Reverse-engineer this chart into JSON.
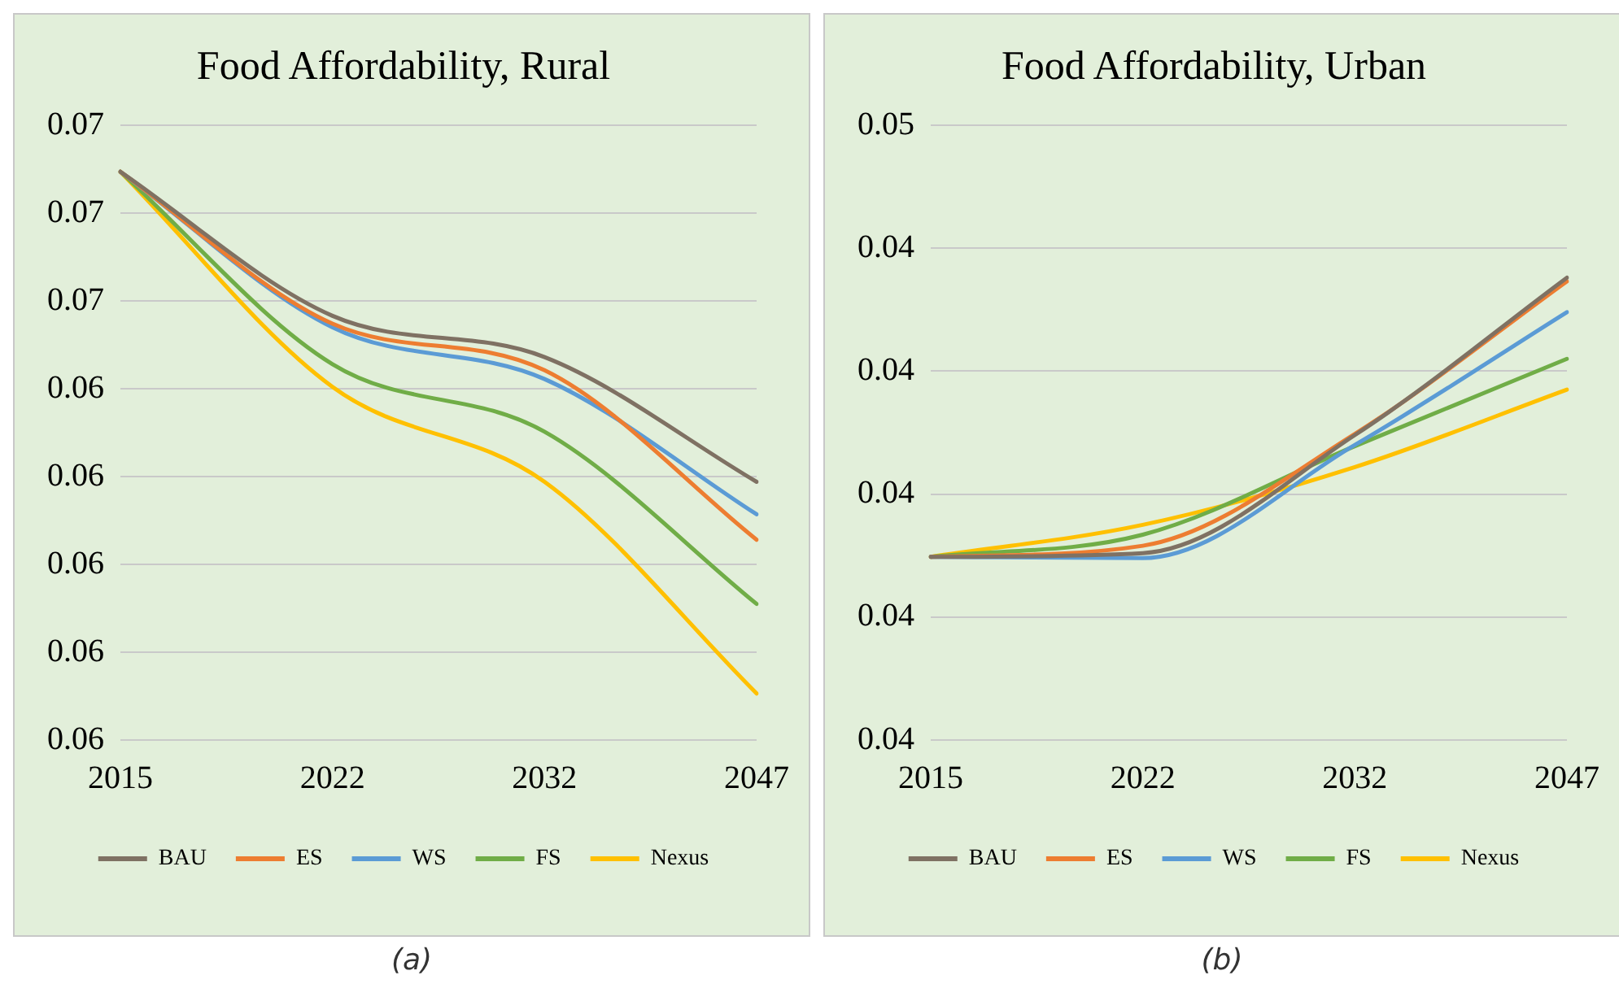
{
  "chart_data": [
    {
      "type": "line",
      "title": "Food Affordability, Rural",
      "categories": [
        "2015",
        "2022",
        "2032",
        "2047"
      ],
      "series": [
        {
          "name": "BAU",
          "color": "#7f7163",
          "values": [
            0.06697,
            0.06533,
            0.06486,
            0.06344
          ]
        },
        {
          "name": "ES",
          "color": "#ed7d31",
          "values": [
            0.06697,
            0.06524,
            0.06471,
            0.06278
          ]
        },
        {
          "name": "WS",
          "color": "#5b9bd5",
          "values": [
            0.06697,
            0.0652,
            0.06461,
            0.06307
          ]
        },
        {
          "name": "FS",
          "color": "#70ad47",
          "values": [
            0.06697,
            0.06478,
            0.06401,
            0.06205
          ]
        },
        {
          "name": "Nexus",
          "color": "#ffc000",
          "values": [
            0.06697,
            0.06452,
            0.06344,
            0.06103
          ]
        }
      ],
      "ylim": [
        0.0605,
        0.0675
      ],
      "yticks": [
        {
          "value": 0.0605,
          "label": "0.06"
        },
        {
          "value": 0.0615,
          "label": "0.06"
        },
        {
          "value": 0.0625,
          "label": "0.06"
        },
        {
          "value": 0.0635,
          "label": "0.06"
        },
        {
          "value": 0.0645,
          "label": "0.06"
        },
        {
          "value": 0.0655,
          "label": "0.07"
        },
        {
          "value": 0.0665,
          "label": "0.07"
        },
        {
          "value": 0.0675,
          "label": "0.07"
        }
      ],
      "grid": "y",
      "legend": "bottom",
      "marker": "none",
      "line_style": "solid",
      "annotations": [
        "(a)"
      ]
    },
    {
      "type": "line",
      "title": "Food Affordability, Urban",
      "categories": [
        "2015",
        "2022",
        "2032",
        "2047"
      ],
      "series": [
        {
          "name": "BAU",
          "color": "#7f7163",
          "values": [
            0.04199,
            0.04202,
            0.04298,
            0.04426
          ]
        },
        {
          "name": "ES",
          "color": "#ed7d31",
          "values": [
            0.04199,
            0.04208,
            0.04299,
            0.04423
          ]
        },
        {
          "name": "WS",
          "color": "#5b9bd5",
          "values": [
            0.04199,
            0.04198,
            0.0429,
            0.04398
          ]
        },
        {
          "name": "FS",
          "color": "#70ad47",
          "values": [
            0.04199,
            0.04217,
            0.04289,
            0.0436
          ]
        },
        {
          "name": "Nexus",
          "color": "#ffc000",
          "values": [
            0.04199,
            0.04225,
            0.04272,
            0.04335
          ]
        }
      ],
      "ylim": [
        0.0405,
        0.0455
      ],
      "yticks": [
        {
          "value": 0.0405,
          "label": "0.04"
        },
        {
          "value": 0.0415,
          "label": "0.04"
        },
        {
          "value": 0.0425,
          "label": "0.04"
        },
        {
          "value": 0.0435,
          "label": "0.04"
        },
        {
          "value": 0.0445,
          "label": "0.04"
        },
        {
          "value": 0.0455,
          "label": "0.05"
        }
      ],
      "grid": "y",
      "legend": "bottom",
      "marker": "none",
      "line_style": "solid",
      "annotations": [
        "(b)"
      ]
    }
  ]
}
